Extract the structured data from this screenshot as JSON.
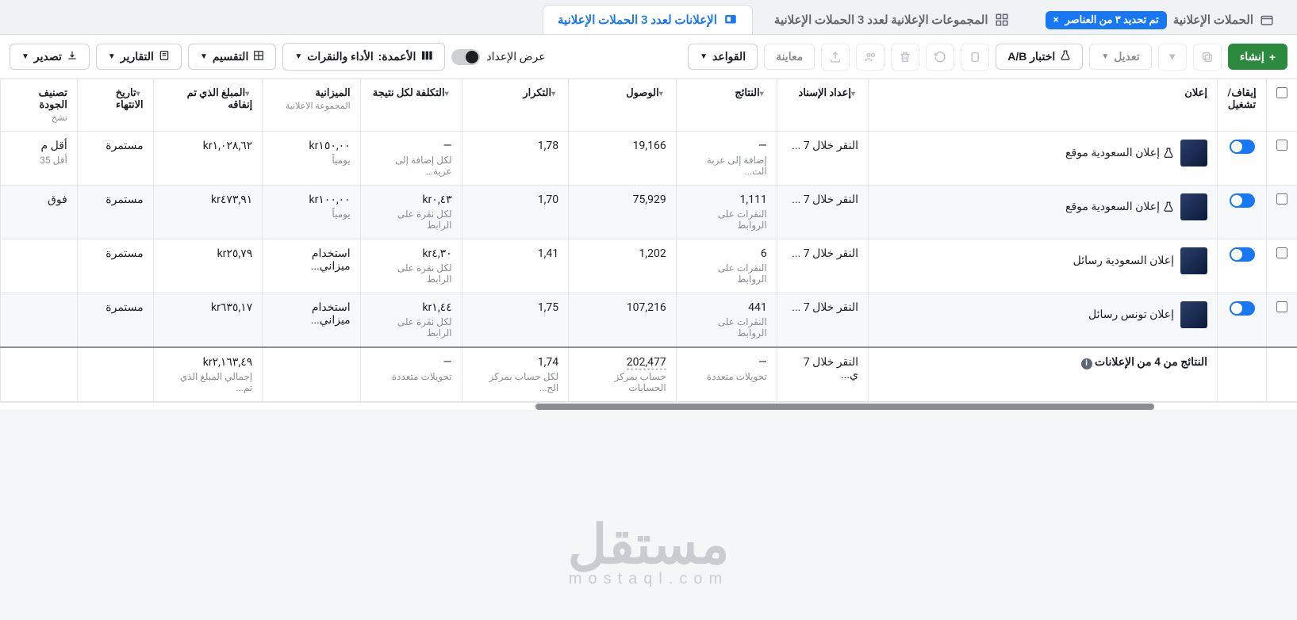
{
  "tabs": {
    "campaigns": "الحملات الإعلانية",
    "selection_pill": "تم تحديد ٣ من العناصر",
    "adsets": "المجموعات الإعلانية لعدد 3 الحملات الإعلانية",
    "ads": "الإعلانات لعدد 3 الحملات الإعلانية"
  },
  "toolbar": {
    "create": "إنشاء",
    "edit": "تعديل",
    "abtest": "اختبار A/B",
    "preview": "معاينة",
    "rules": "القواعد",
    "view_setup": "عرض الإعداد",
    "columns_prefix": "الأعمدة:",
    "columns_value": "الأداء والنقرات",
    "breakdown": "التقسيم",
    "reports": "التقارير",
    "export": "تصدير"
  },
  "columns": {
    "c0": "إيقاف/تشغيل",
    "c1": "إعلان",
    "c2": "إعداد الإسناد",
    "c3": "النتائج",
    "c4": "الوصول",
    "c5": "التكرار",
    "c6": "التكلفة لكل نتيجة",
    "c7": "الميزانية",
    "c7s": "المجموعة الاعلانية",
    "c8": "المبلغ الذي تم إنفاقه",
    "c9": "تاريخ الانتهاء",
    "c10": "تصنيف الجودة",
    "c10s": "تشخ"
  },
  "rows": [
    {
      "name": "إعلان السعودية موقع",
      "has_flask": true,
      "attribution": "النقر خلال 7 ...",
      "results": "—",
      "results_sub": "إضافة إلى عربة الت...",
      "reach": "19,166",
      "freq": "1,78",
      "cpr": "—",
      "cpr_sub": "لكل إضافة إلى عربة...",
      "budget": "kr١٥٠,٠٠",
      "budget_sub": "يومياً",
      "spent": "kr١,٠٢٨,٦٢",
      "end": "مستمرة",
      "quality": "أقل م",
      "quality_sub": "أقل 35"
    },
    {
      "name": "إعلان السعودية موقع",
      "has_flask": true,
      "attribution": "النقر خلال 7 ...",
      "results": "1,111",
      "results_sub": "النقرات على الروابط",
      "reach": "75,929",
      "freq": "1,70",
      "cpr": "kr٠,٤٣",
      "cpr_sub": "لكل نقرة على الرابط",
      "budget": "kr١٠٠,٠٠",
      "budget_sub": "يومياً",
      "spent": "kr٤٧٣,٩١",
      "end": "مستمرة",
      "quality": "فوق",
      "quality_sub": ""
    },
    {
      "name": "إعلان السعودية رسائل",
      "has_flask": false,
      "attribution": "النقر خلال 7 ...",
      "results": "6",
      "results_sub": "النقرات على الروابط",
      "reach": "1,202",
      "freq": "1,41",
      "cpr": "kr٤,٣٠",
      "cpr_sub": "لكل نقرة على الرابط",
      "budget": "استخدام ميزاني...",
      "budget_sub": "",
      "spent": "kr٢٥,٧٩",
      "end": "مستمرة",
      "quality": "",
      "quality_sub": ""
    },
    {
      "name": "إعلان تونس رسائل",
      "has_flask": false,
      "attribution": "النقر خلال 7 ...",
      "results": "441",
      "results_sub": "النقرات على الروابط",
      "reach": "107,216",
      "freq": "1,75",
      "cpr": "kr١,٤٤",
      "cpr_sub": "لكل نقرة على الرابط",
      "budget": "استخدام ميزاني...",
      "budget_sub": "",
      "spent": "kr٦٣٥,١٧",
      "end": "مستمرة",
      "quality": "",
      "quality_sub": ""
    }
  ],
  "totals": {
    "label": "النتائج من 4 من الإعلانات",
    "attribution": "النقر خلال 7 ي...",
    "results": "—",
    "results_sub": "تحويلات متعددة",
    "reach": "202,477",
    "reach_sub": "حساب بمركز الحسابات",
    "freq": "1,74",
    "freq_sub": "لكل حساب بمركز الح...",
    "cpr": "—",
    "cpr_sub": "تحويلات متعددة",
    "spent": "kr٢,١٦٣,٤٩",
    "spent_sub": "إجمالي المبلغ الذي تم..."
  },
  "watermark": {
    "big": "مستقل",
    "small": "mostaql.com"
  }
}
